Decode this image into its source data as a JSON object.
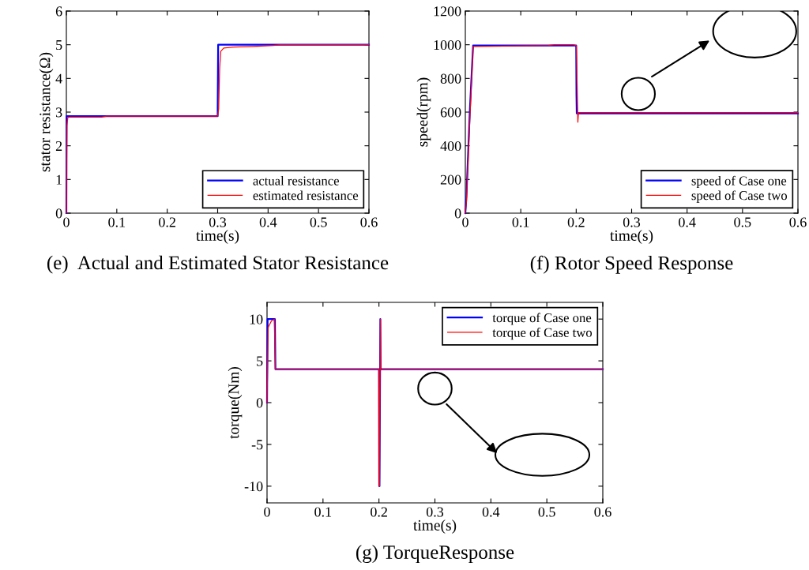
{
  "chart_data": [
    {
      "type": "line",
      "title": "(e)  Actual and Estimated Stator Resistance",
      "xlabel": "time(s)",
      "ylabel": "stator resistance(Ω)",
      "xlim": [
        0,
        0.6
      ],
      "xticks": [
        0,
        0.1,
        0.2,
        0.3,
        0.4,
        0.5,
        0.6
      ],
      "ylim": [
        0,
        6
      ],
      "yticks": [
        0,
        1,
        2,
        3,
        4,
        5,
        6
      ],
      "grid": false,
      "legend": "bottom right",
      "series": [
        {
          "name": "actual resistance",
          "color": "#0000ff",
          "x": [
            0,
            0.0005,
            0.3,
            0.301,
            0.6
          ],
          "values": [
            0,
            2.88,
            2.88,
            5,
            5
          ]
        },
        {
          "name": "estimated resistance",
          "color": "#ff0000",
          "x": [
            0,
            0.001,
            0.003,
            0.07,
            0.08,
            0.3,
            0.302,
            0.304,
            0.306,
            0.312,
            0.33,
            0.37,
            0.41,
            0.425,
            0.6
          ],
          "values": [
            0,
            2.6,
            2.85,
            2.85,
            2.88,
            2.88,
            3.1,
            4.3,
            4.8,
            4.9,
            4.93,
            4.95,
            4.98,
            5,
            5
          ]
        }
      ]
    },
    {
      "type": "line",
      "title": "(f) Rotor Speed Response",
      "xlabel": "time(s)",
      "ylabel": "speed(rpm)",
      "xlim": [
        0,
        0.6
      ],
      "xticks": [
        0,
        0.1,
        0.2,
        0.3,
        0.4,
        0.5,
        0.6
      ],
      "ylim": [
        0,
        1200
      ],
      "yticks": [
        0,
        200,
        400,
        600,
        800,
        1000,
        1200
      ],
      "grid": false,
      "legend": "bottom right",
      "series": [
        {
          "name": "speed of Case one",
          "color": "#0000ff",
          "x": [
            0,
            0.002,
            0.008,
            0.014,
            0.2,
            0.2005,
            0.201,
            0.6
          ],
          "values": [
            0,
            100,
            600,
            995,
            995,
            700,
            592,
            592
          ]
        },
        {
          "name": "speed of Case two",
          "color": "#ff0000",
          "x": [
            0,
            0.002,
            0.006,
            0.014,
            0.15,
            0.16,
            0.195,
            0.2,
            0.2005,
            0.202,
            0.203,
            0.204,
            0.6
          ],
          "values": [
            0,
            70,
            400,
            990,
            995,
            1000,
            1000,
            995,
            940,
            710,
            540,
            597,
            597
          ]
        }
      ]
    },
    {
      "type": "line",
      "title": "(g) TorqueResponse",
      "xlabel": "time(s)",
      "ylabel": "torque(Nm)",
      "xlim": [
        0,
        0.6
      ],
      "xticks": [
        0,
        0.1,
        0.2,
        0.3,
        0.4,
        0.5,
        0.6
      ],
      "ylim": [
        -12,
        12
      ],
      "yticks": [
        -10,
        -5,
        0,
        5,
        10
      ],
      "grid": false,
      "legend": "top right",
      "series": [
        {
          "name": "torque of Case one",
          "color": "#0000ff",
          "x": [
            0,
            0.001,
            0.014,
            0.015,
            0.2,
            0.2005,
            0.201,
            0.2025,
            0.203,
            0.6
          ],
          "values": [
            0,
            10,
            10,
            4,
            4,
            -10,
            -10,
            10,
            4,
            4
          ]
        },
        {
          "name": "torque of Case two",
          "color": "#ff0000",
          "x": [
            0,
            0.002,
            0.008,
            0.013,
            0.015,
            0.2,
            0.2005,
            0.201,
            0.2025,
            0.203,
            0.6
          ],
          "values": [
            0,
            9,
            9.8,
            10,
            4,
            4,
            -10,
            -10,
            10,
            4,
            4
          ]
        }
      ]
    }
  ]
}
